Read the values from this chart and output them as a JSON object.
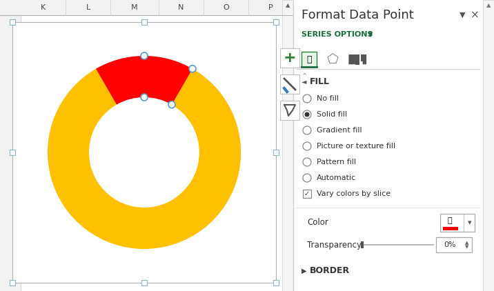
{
  "fig_w": 7.16,
  "fig_h": 4.22,
  "dpi": 100,
  "excel_bg": "#ffffff",
  "grid_header_bg": "#f2f2f2",
  "grid_line_color": "#d0d0d0",
  "panel_bg": "#ffffff",
  "panel_border": "#e0e0e0",
  "scrollbar_bg": "#f5f5f5",
  "col_labels": [
    "K",
    "L",
    "M",
    "N",
    "O",
    "P"
  ],
  "donut_yellow": "#FFC000",
  "donut_red": "#FF0000",
  "title_text": "Format Data Point",
  "series_options_text": "SERIES OPTIONS",
  "fill_text": "FILL",
  "border_text": "BORDER",
  "radio_options": [
    "No fill",
    "Solid fill",
    "Gradient fill",
    "Picture or texture fill",
    "Pattern fill",
    "Automatic"
  ],
  "selected_radio": 1,
  "checkbox_text": "Vary colors by slice",
  "color_label": "Color",
  "transparency_label": "Transparency",
  "transparency_value": "0%"
}
